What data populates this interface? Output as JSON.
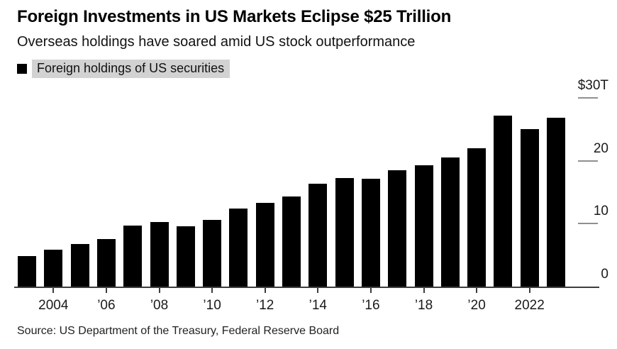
{
  "header": {
    "title": "Foreign Investments in US Markets Eclipse $25 Trillion",
    "subtitle": "Overseas holdings have soared amid US stock outperformance"
  },
  "legend": {
    "label": "Foreign holdings of US securities",
    "swatch_color": "#000000",
    "highlight_color": "#d2d2d2"
  },
  "source": "Source: US Department of the Treasury, Federal Reserve Board",
  "chart_data": {
    "type": "bar",
    "title": "Foreign Investments in US Markets Eclipse $25 Trillion",
    "subtitle": "Overseas holdings have soared amid US stock outperformance",
    "series_name": "Foreign holdings of US securities",
    "unit": "USD trillions",
    "categories": [
      2003,
      2004,
      2005,
      2006,
      2007,
      2008,
      2009,
      2010,
      2011,
      2012,
      2013,
      2014,
      2015,
      2016,
      2017,
      2018,
      2019,
      2020,
      2021,
      2022,
      2023
    ],
    "values": [
      4.8,
      5.9,
      6.8,
      7.6,
      9.7,
      10.3,
      9.6,
      10.6,
      12.4,
      13.3,
      14.3,
      16.4,
      17.2,
      17.1,
      18.5,
      19.3,
      20.5,
      22.0,
      27.2,
      25.0,
      26.8
    ],
    "ylim": [
      0,
      30
    ],
    "y_ticks": [
      {
        "value": 30,
        "label": "$30T"
      },
      {
        "value": 20,
        "label": "20"
      },
      {
        "value": 10,
        "label": "10"
      },
      {
        "value": 0,
        "label": "0"
      }
    ],
    "x_ticks": [
      {
        "year": 2004,
        "label": "2004"
      },
      {
        "year": 2006,
        "label": "’06"
      },
      {
        "year": 2008,
        "label": "’08"
      },
      {
        "year": 2010,
        "label": "’10"
      },
      {
        "year": 2012,
        "label": "’12"
      },
      {
        "year": 2014,
        "label": "’14"
      },
      {
        "year": 2016,
        "label": "’16"
      },
      {
        "year": 2018,
        "label": "’18"
      },
      {
        "year": 2020,
        "label": "’20"
      },
      {
        "year": 2022,
        "label": "2022"
      }
    ],
    "bar_color": "#000000",
    "axis_color": "#3d3d3d",
    "value_tick_color": "#8f8f8f",
    "grid": false,
    "legend_position": "top-left",
    "value_axis_side": "right"
  }
}
